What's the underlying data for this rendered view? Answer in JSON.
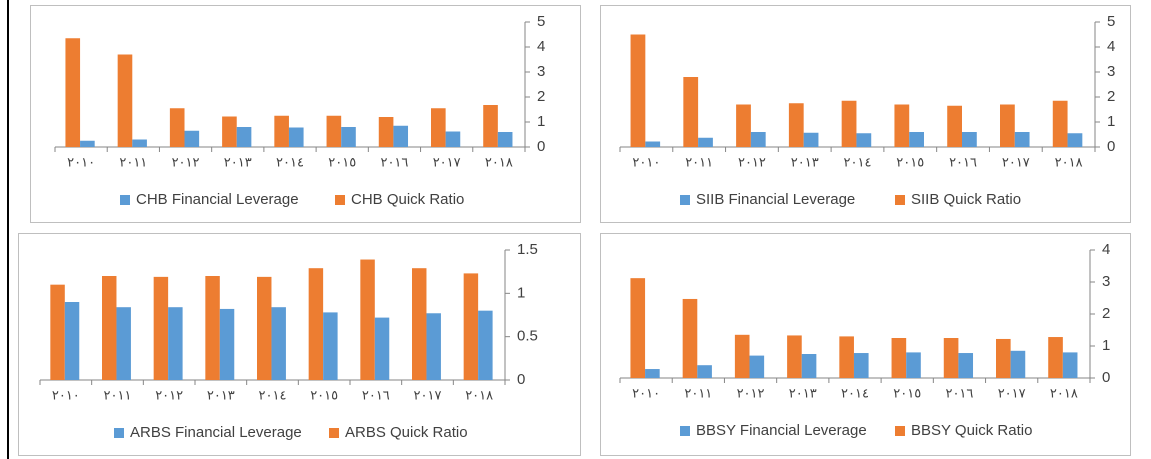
{
  "chart_data": [
    {
      "type": "bar",
      "categories": [
        "٢٠١٠",
        "٢٠١١",
        "٢٠١٢",
        "٢٠١٣",
        "٢٠١٤",
        "٢٠١٥",
        "٢٠١٦",
        "٢٠١٧",
        "٢٠١٨"
      ],
      "series": [
        {
          "name": "CHB Financial Leverage",
          "color": "#5b9bd5",
          "values": [
            0.25,
            0.3,
            0.65,
            0.8,
            0.78,
            0.8,
            0.85,
            0.62,
            0.6
          ]
        },
        {
          "name": "CHB Quick Ratio",
          "color": "#ed7d31",
          "values": [
            4.35,
            3.7,
            1.55,
            1.22,
            1.25,
            1.25,
            1.2,
            1.55,
            1.68
          ]
        }
      ],
      "ylim": [
        0,
        5
      ],
      "yticks": [
        0,
        1,
        2,
        3,
        4,
        5
      ],
      "y_axis_side": "right",
      "legend": "bottom",
      "grid": false
    },
    {
      "type": "bar",
      "categories": [
        "٢٠١٠",
        "٢٠١١",
        "٢٠١٢",
        "٢٠١٣",
        "٢٠١٤",
        "٢٠١٥",
        "٢٠١٦",
        "٢٠١٧",
        "٢٠١٨"
      ],
      "series": [
        {
          "name": "SIIB Financial Leverage",
          "color": "#5b9bd5",
          "values": [
            0.22,
            0.37,
            0.6,
            0.57,
            0.55,
            0.6,
            0.6,
            0.6,
            0.55
          ]
        },
        {
          "name": "SIIB Quick Ratio",
          "color": "#ed7d31",
          "values": [
            4.5,
            2.8,
            1.7,
            1.75,
            1.85,
            1.7,
            1.65,
            1.7,
            1.85
          ]
        }
      ],
      "ylim": [
        0,
        5
      ],
      "yticks": [
        0,
        1,
        2,
        3,
        4,
        5
      ],
      "y_axis_side": "right",
      "legend": "bottom",
      "grid": false
    },
    {
      "type": "bar",
      "categories": [
        "٢٠١٠",
        "٢٠١١",
        "٢٠١٢",
        "٢٠١٣",
        "٢٠١٤",
        "٢٠١٥",
        "٢٠١٦",
        "٢٠١٧",
        "٢٠١٨"
      ],
      "series": [
        {
          "name": "ARBS Financial Leverage",
          "color": "#5b9bd5",
          "values": [
            0.9,
            0.84,
            0.84,
            0.82,
            0.84,
            0.78,
            0.72,
            0.77,
            0.8
          ]
        },
        {
          "name": "ARBS Quick Ratio",
          "color": "#ed7d31",
          "values": [
            1.1,
            1.2,
            1.19,
            1.2,
            1.19,
            1.29,
            1.39,
            1.29,
            1.23
          ]
        }
      ],
      "ylim": [
        0,
        1.5
      ],
      "yticks": [
        0,
        0.5,
        1,
        1.5
      ],
      "y_axis_side": "right",
      "legend": "bottom",
      "grid": false
    },
    {
      "type": "bar",
      "categories": [
        "٢٠١٠",
        "٢٠١١",
        "٢٠١٢",
        "٢٠١٣",
        "٢٠١٤",
        "٢٠١٥",
        "٢٠١٦",
        "٢٠١٧",
        "٢٠١٨"
      ],
      "series": [
        {
          "name": "BBSY Financial Leverage",
          "color": "#5b9bd5",
          "values": [
            0.28,
            0.4,
            0.7,
            0.75,
            0.78,
            0.8,
            0.78,
            0.85,
            0.8
          ]
        },
        {
          "name": "BBSY Quick Ratio",
          "color": "#ed7d31",
          "values": [
            3.12,
            2.47,
            1.35,
            1.33,
            1.3,
            1.25,
            1.25,
            1.22,
            1.28
          ]
        }
      ],
      "ylim": [
        0,
        4
      ],
      "yticks": [
        0,
        1,
        2,
        3,
        4
      ],
      "y_axis_side": "right",
      "legend": "bottom",
      "grid": false
    }
  ]
}
